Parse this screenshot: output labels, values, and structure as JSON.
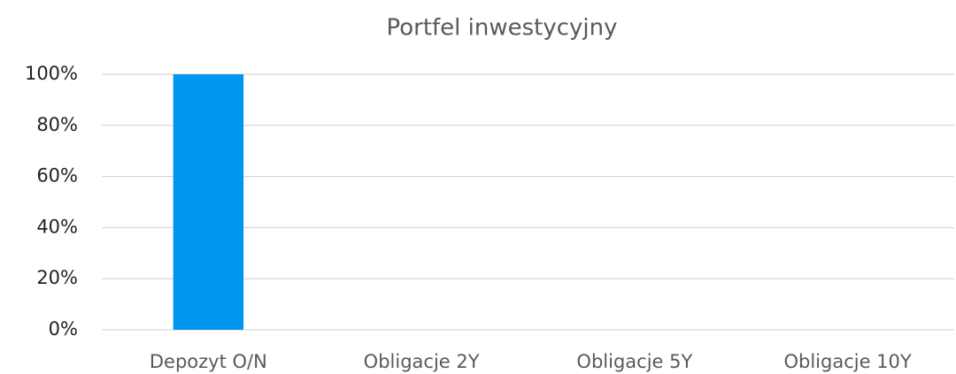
{
  "chart_data": {
    "type": "bar",
    "title": "Portfel inwestycyjny",
    "categories": [
      "Depozyt O/N",
      "Obligacje 2Y",
      "Obligacje 5Y",
      "Obligacje 10Y"
    ],
    "values": [
      100,
      0,
      0,
      0
    ],
    "color": "#0096f0",
    "ylim": [
      0,
      100
    ],
    "yticks": [
      {
        "value": 0,
        "label": "0%"
      },
      {
        "value": 20,
        "label": "20%"
      },
      {
        "value": 40,
        "label": "40%"
      },
      {
        "value": 60,
        "label": "60%"
      },
      {
        "value": 80,
        "label": "80%"
      },
      {
        "value": 100,
        "label": "100%"
      }
    ],
    "grid": true
  }
}
